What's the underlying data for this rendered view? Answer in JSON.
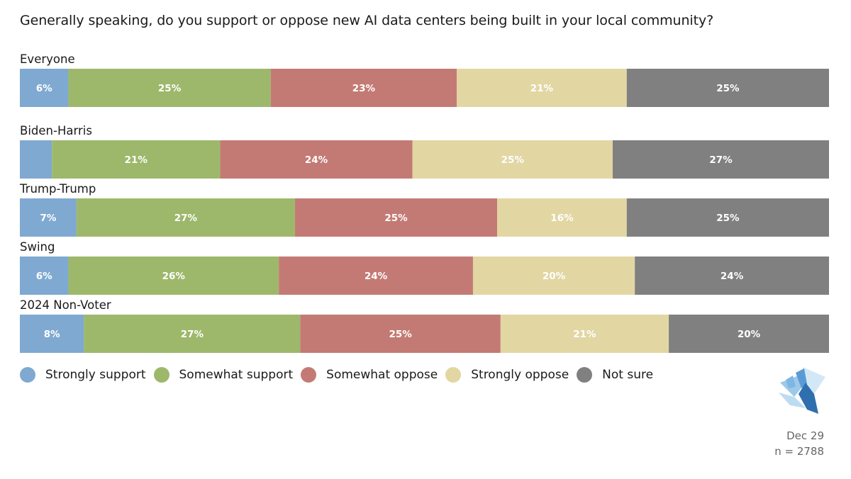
{
  "chart_data": {
    "type": "bar",
    "orientation": "horizontal",
    "stacked": true,
    "normalized": true,
    "title": "Generally speaking, do you support or oppose new AI data centers being built in your local community?",
    "categories": [
      "Everyone",
      "Biden-Harris",
      "Trump-Trump",
      "Swing",
      "2024 Non-Voter"
    ],
    "series": [
      {
        "name": "Strongly support",
        "color": "#7fa9d0",
        "values": [
          6,
          4,
          7,
          6,
          8
        ],
        "labels": [
          "6%",
          "",
          "7%",
          "6%",
          "8%"
        ]
      },
      {
        "name": "Somewhat support",
        "color": "#9db86b",
        "values": [
          25,
          21,
          27,
          26,
          27
        ],
        "labels": [
          "25%",
          "21%",
          "27%",
          "26%",
          "27%"
        ]
      },
      {
        "name": "Somewhat oppose",
        "color": "#c47a74",
        "values": [
          23,
          24,
          25,
          24,
          25
        ],
        "labels": [
          "23%",
          "24%",
          "25%",
          "24%",
          "25%"
        ]
      },
      {
        "name": "Strongly oppose",
        "color": "#e2d6a3",
        "values": [
          21,
          25,
          16,
          20,
          21
        ],
        "labels": [
          "21%",
          "25%",
          "16%",
          "20%",
          "21%"
        ]
      },
      {
        "name": "Not sure",
        "color": "#808080",
        "values": [
          25,
          27,
          25,
          24,
          20
        ],
        "labels": [
          "25%",
          "27%",
          "25%",
          "24%",
          "20%"
        ]
      }
    ],
    "legend": "bottom-left",
    "xlim": [
      0,
      100
    ]
  },
  "footer": {
    "date": "Dec 29",
    "sample": "n = 2788"
  },
  "logo": {
    "icon": "pollster-logo-icon",
    "colors": [
      "#2f6fae",
      "#5b9bd5",
      "#9cc9ea",
      "#d3e8f6"
    ]
  }
}
